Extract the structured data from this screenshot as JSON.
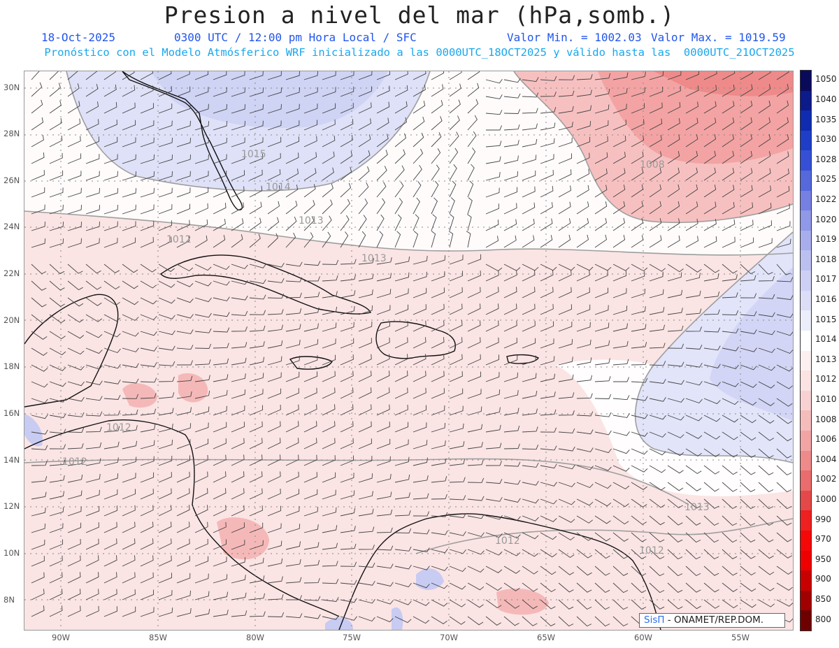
{
  "header": {
    "title": "Presion a nivel del mar (hPa,somb.)",
    "date": "18-Oct-2025",
    "time": "0300 UTC / 12:00 pm Hora Local / SFC",
    "min_value": "Valor Min. = 1002.03",
    "max_value": "Valor Max. = 1019.59",
    "forecast_note": "Pronóstico con el Modelo Atmósferico WRF inicializado a las 0000UTC_18OCT2025 y válido hasta las  0000UTC_21OCT2025"
  },
  "map": {
    "lat_labels": [
      "30N",
      "28N",
      "26N",
      "24N",
      "22N",
      "20N",
      "18N",
      "16N",
      "14N",
      "12N",
      "10N",
      "8N"
    ],
    "lon_labels": [
      "90W",
      "85W",
      "80W",
      "75W",
      "70W",
      "65W",
      "60W",
      "55W"
    ],
    "contour_labels": [
      "1015",
      "1014",
      "1013",
      "1012",
      "1013",
      "1008",
      "1012",
      "1012",
      "1012",
      "1013",
      "1012"
    ]
  },
  "colorbar": {
    "levels": [
      "1050",
      "1040",
      "1035",
      "1030",
      "1028",
      "1025",
      "1022",
      "1020",
      "1019",
      "1018",
      "1017",
      "1016",
      "1015",
      "1014",
      "1013",
      "1012",
      "1010",
      "1008",
      "1006",
      "1004",
      "1002",
      "1000",
      "990",
      "970",
      "950",
      "900",
      "850",
      "800"
    ],
    "colors": [
      "#0a0a5a",
      "#0d1a8a",
      "#0f2cb0",
      "#1e3ec8",
      "#3550d5",
      "#5568dc",
      "#7580e2",
      "#9098e8",
      "#a8aeec",
      "#bcc0f0",
      "#cdd0f4",
      "#dcdef7",
      "#ebedfb",
      "#ffffff",
      "#fdf0f0",
      "#fbe3e3",
      "#f8d2d2",
      "#f5bcbc",
      "#f2a4a4",
      "#ee8a8a",
      "#ea6c6c",
      "#e54848",
      "#ee2020",
      "#f50808",
      "#ee0000",
      "#c80000",
      "#a00000",
      "#6e0000"
    ]
  },
  "credit": {
    "brand": "SisΠ",
    "org": " - ONAMET/REP.DOM."
  }
}
